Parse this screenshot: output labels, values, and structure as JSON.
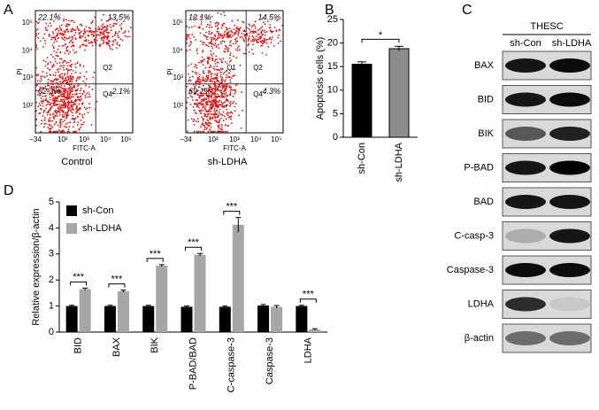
{
  "panel_labels": [
    "A",
    "B",
    "C",
    "D"
  ],
  "flow": {
    "x_label": "FITC-A",
    "y_label": "PI",
    "x_ticks": [
      "−34",
      "10²",
      "10³",
      "10⁴",
      "10⁵"
    ],
    "y_ticks": [
      "10²",
      "10³",
      "10⁴",
      "10⁵"
    ],
    "plots": [
      {
        "caption": "Control",
        "quadrants": [
          "22.1%",
          "13.5%",
          "62.3%",
          "2.1%"
        ],
        "gates": [
          "Q2",
          "Q4"
        ]
      },
      {
        "caption": "sh-LDHA",
        "quadrants": [
          "12.1%",
          "14.5%",
          "69.1%",
          "4.3%"
        ],
        "gates": [
          "Q1",
          "Q2",
          "Q4"
        ]
      }
    ]
  },
  "blot": {
    "header": "THESC",
    "columns": [
      "sh-Con",
      "sh-LDHA"
    ],
    "rows": [
      "BAX",
      "BID",
      "BIK",
      "P-BAD",
      "BAD",
      "C-casp-3",
      "Caspase-3",
      "LDHA",
      "β-actin"
    ]
  },
  "chart_data": [
    {
      "type": "bar",
      "y_label": "Apoptosis cells (%)",
      "categories": [
        "sh-Con",
        "sh-LDHA"
      ],
      "values": [
        15.5,
        18.8
      ],
      "errors": [
        0.5,
        0.5
      ],
      "colors": [
        "#000000",
        "#8c8c8c"
      ],
      "significance": "*",
      "ylim": [
        0,
        25
      ],
      "yticks": [
        0,
        5,
        10,
        15,
        20,
        25
      ]
    },
    {
      "type": "grouped_bar",
      "y_label": "Relative expression/β-actin",
      "categories": [
        "BID",
        "BAX",
        "BIK",
        "P-BAD/BAD",
        "C-caspase-3",
        "Caspase-3",
        "LDHA"
      ],
      "series": [
        {
          "name": "sh-Con",
          "color": "#000000",
          "values": [
            1.0,
            1.0,
            1.0,
            0.97,
            0.97,
            1.02,
            1.0
          ],
          "errors": [
            0.03,
            0.03,
            0.03,
            0.03,
            0.03,
            0.04,
            0.03
          ]
        },
        {
          "name": "sh-LDHA",
          "color": "#a6a6a6",
          "values": [
            1.65,
            1.57,
            2.55,
            2.97,
            4.12,
            0.97,
            0.1
          ],
          "errors": [
            0.04,
            0.04,
            0.04,
            0.05,
            0.28,
            0.05,
            0.03
          ]
        }
      ],
      "significance": [
        "***",
        "***",
        "***",
        "***",
        "***",
        null,
        "***"
      ],
      "legend": "top-left",
      "ylim": [
        0,
        5
      ],
      "yticks": [
        0,
        1,
        2,
        3,
        4,
        5
      ]
    }
  ]
}
